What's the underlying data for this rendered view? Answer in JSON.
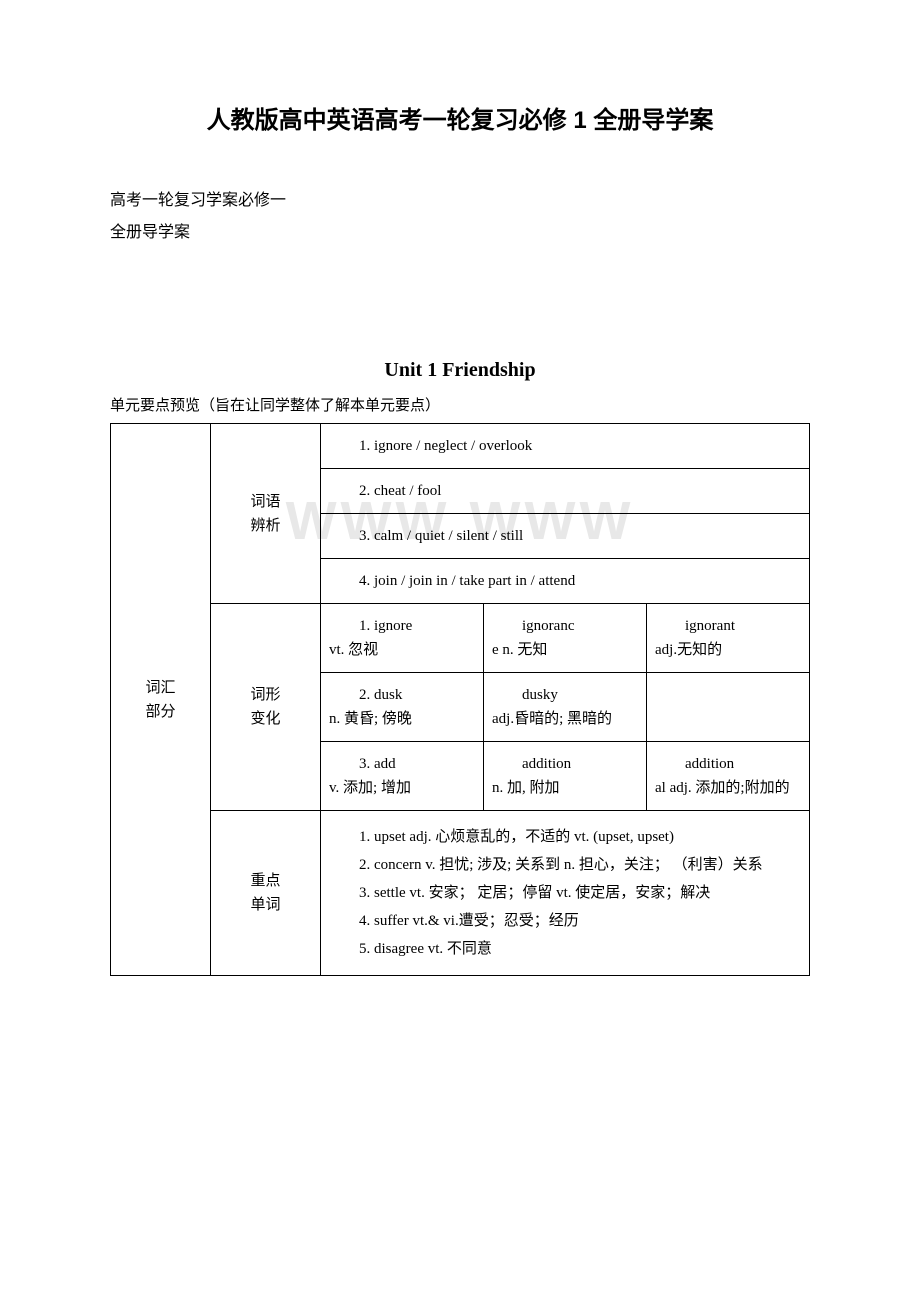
{
  "page": {
    "title": "人教版高中英语高考一轮复习必修 1 全册导学案",
    "subtitle_line1": "高考一轮复习学案必修一",
    "subtitle_line2": "全册导学案",
    "unit_heading": "Unit 1 Friendship",
    "preview_text": "单元要点预览（旨在让同学整体了解本单元要点）",
    "watermark": "WWW"
  },
  "table": {
    "section1_label_line1": "词汇",
    "section1_label_line2": "部分",
    "row_cy_label_line1": "词语",
    "row_cy_label_line2": "辨析",
    "cy_items": {
      "i1": "1. ignore / neglect / overlook",
      "i2": "2. cheat / fool",
      "i3": "3. calm / quiet / silent / still",
      "i4": "4. join / join in / take part in / attend"
    },
    "row_cx_label_line1": "词形",
    "row_cx_label_line2": "变化",
    "cx": {
      "r1c1a": "1. ignore",
      "r1c1b": "vt. 忽视",
      "r1c2a": "ignoranc",
      "r1c2b": "e n. 无知",
      "r1c3a": "ignorant",
      "r1c3b": "adj.无知的",
      "r2c1a": "2. dusk",
      "r2c1b": "n. 黄昏; 傍晚",
      "r2c2a": "dusky",
      "r2c2b": "adj.昏暗的; 黑暗的",
      "r3c1a": "3. add",
      "r3c1b": "v.  添加; 增加",
      "r3c2a": "addition",
      "r3c2b": "n.  加, 附加",
      "r3c3a": "addition",
      "r3c3b": "al adj.  添加的;附加的"
    },
    "row_zd_label_line1": "重点",
    "row_zd_label_line2": "单词",
    "zd_items": {
      "i1": "1. upset adj. 心烦意乱的，不适的 vt. (upset, upset)",
      "i2": "2. concern v. 担忧; 涉及; 关系到 n. 担心，关注； （利害）关系",
      "i3": "3. settle vt. 安家； 定居；停留 vt. 使定居，安家；解决",
      "i4": "4. suffer vt.& vi.遭受；忍受；经历",
      "i5": "5. disagree vt. 不同意"
    }
  },
  "style": {
    "background_color": "#ffffff",
    "text_color": "#000000",
    "border_color": "#000000",
    "watermark_color": "#e8e8e8",
    "title_fontsize": 24,
    "body_fontsize": 15,
    "unit_heading_fontsize": 20
  }
}
